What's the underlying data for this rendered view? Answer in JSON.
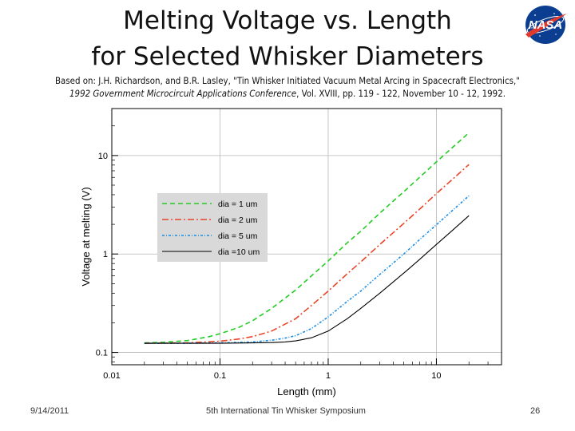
{
  "slide": {
    "title_line1": "Melting Voltage vs. Length",
    "title_line2": "for Selected Whisker Diameters",
    "citation_line1": "Based on: J.H. Richardson, and B.R. Lasley, \"Tin Whisker Initiated Vacuum Metal Arcing in Spacecraft Electronics,\"",
    "citation_line2_italic": "1992 Government Microcircuit Applications Conference",
    "citation_line2_rest": ", Vol. XVIII, pp. 119 - 122, November 10 - 12, 1992.",
    "logo_text": "NASA",
    "footer_date": "9/14/2011",
    "footer_event": "5th International Tin Whisker Symposium",
    "footer_page": "26"
  },
  "chart_data": {
    "type": "line",
    "title": "",
    "xlabel": "Length (mm)",
    "ylabel": "Voltage at melting (V)",
    "xscale": "log",
    "yscale": "log",
    "xlim": [
      0.01,
      40
    ],
    "ylim": [
      0.075,
      30
    ],
    "xticks": [
      0.01,
      0.1,
      1,
      10
    ],
    "xtick_labels": [
      "0.01",
      "0.1",
      "1",
      "10"
    ],
    "yticks": [
      0.1,
      1,
      10
    ],
    "ytick_labels": [
      "0.1",
      "1",
      "10"
    ],
    "grid": true,
    "legend_position": "upper-left",
    "series": [
      {
        "name": "dia = 1 um",
        "color": "#22cc22",
        "dash": "6,4",
        "x": [
          0.02,
          0.03,
          0.05,
          0.08,
          0.1,
          0.15,
          0.2,
          0.3,
          0.5,
          0.7,
          1,
          1.5,
          2,
          3,
          5,
          7,
          10,
          14,
          20
        ],
        "y": [
          0.125,
          0.127,
          0.132,
          0.145,
          0.155,
          0.18,
          0.21,
          0.28,
          0.43,
          0.6,
          0.85,
          1.3,
          1.7,
          2.6,
          4.3,
          6.0,
          8.6,
          12.0,
          17.0
        ]
      },
      {
        "name": "dia = 2 um",
        "color": "#e8462a",
        "dash": "8,3,2,3",
        "x": [
          0.02,
          0.05,
          0.1,
          0.15,
          0.2,
          0.3,
          0.5,
          0.7,
          1,
          1.5,
          2,
          3,
          5,
          7,
          10,
          14,
          20
        ],
        "y": [
          0.124,
          0.125,
          0.13,
          0.137,
          0.145,
          0.165,
          0.22,
          0.3,
          0.42,
          0.63,
          0.83,
          1.25,
          2.05,
          2.85,
          4.1,
          5.7,
          8.1
        ]
      },
      {
        "name": "dia = 5 um",
        "color": "#1a8ce0",
        "dash": "3,2,1,2",
        "x": [
          0.02,
          0.05,
          0.1,
          0.2,
          0.3,
          0.4,
          0.5,
          0.7,
          1,
          1.5,
          2,
          3,
          5,
          7,
          10,
          14,
          20
        ],
        "y": [
          0.124,
          0.124,
          0.125,
          0.128,
          0.133,
          0.14,
          0.148,
          0.175,
          0.23,
          0.33,
          0.42,
          0.62,
          1.0,
          1.4,
          1.98,
          2.75,
          3.9
        ]
      },
      {
        "name": "dia =10 um",
        "color": "#000000",
        "dash": "",
        "x": [
          0.02,
          0.05,
          0.1,
          0.2,
          0.3,
          0.4,
          0.5,
          0.7,
          1,
          1.5,
          2,
          3,
          5,
          7,
          10,
          14,
          20
        ],
        "y": [
          0.124,
          0.124,
          0.124,
          0.125,
          0.126,
          0.128,
          0.131,
          0.141,
          0.165,
          0.22,
          0.28,
          0.4,
          0.64,
          0.88,
          1.25,
          1.73,
          2.45
        ]
      }
    ]
  }
}
